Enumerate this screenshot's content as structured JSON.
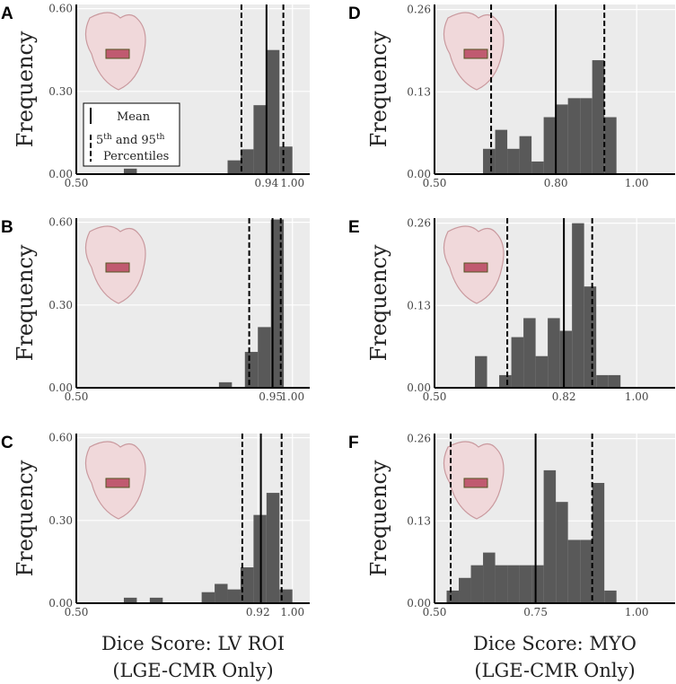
{
  "chart_data": [
    {
      "type": "histogram",
      "panel": "A",
      "ylabel": "Frequency",
      "color": "#595959",
      "grid": true,
      "bins": [
        0.61,
        0.64,
        0.67,
        0.7,
        0.73,
        0.76,
        0.79,
        0.82,
        0.85,
        0.88,
        0.91,
        0.94,
        0.97,
        1.0
      ],
      "values": [
        0.02,
        0,
        0,
        0,
        0,
        0,
        0,
        0,
        0.05,
        0.09,
        0.25,
        0.45,
        0.1
      ],
      "mean": 0.94,
      "percentiles": [
        0.882,
        0.979
      ],
      "xlim": [
        0.5,
        1.04
      ],
      "xticks": [
        {
          "value": 0.5,
          "label": "0.50"
        },
        0.94,
        {
          "value": 1,
          "label": "1.00"
        }
      ],
      "ylim": [
        0,
        0.615
      ],
      "yticks": [
        {
          "value": 0,
          "label": "0.00"
        },
        {
          "value": 0.3,
          "label": "0.30"
        },
        {
          "value": 0.6,
          "label": "0.60"
        }
      ],
      "legend": {
        "mean": "Mean",
        "percentiles": [
          "5",
          "th",
          " and 95",
          "th",
          "Percentiles"
        ]
      }
    },
    {
      "type": "histogram",
      "panel": "B",
      "ylabel": "Frequency",
      "color": "#595959",
      "grid": true,
      "bins": [
        0.83,
        0.86,
        0.89,
        0.92,
        0.95,
        0.98
      ],
      "values": [
        0.02,
        0,
        0.13,
        0.22,
        0.61
      ],
      "mean": 0.954,
      "percentiles": [
        0.9,
        0.973
      ],
      "xlim": [
        0.5,
        1.04
      ],
      "xticks": [
        {
          "value": 0.5,
          "label": "0.50"
        },
        0.95,
        {
          "value": 1,
          "label": "1.00"
        }
      ],
      "ylim": [
        0,
        0.615
      ],
      "yticks": [
        {
          "value": 0,
          "label": "0.00"
        },
        {
          "value": 0.3,
          "label": "0.30"
        },
        {
          "value": 0.6,
          "label": "0.60"
        }
      ]
    },
    {
      "type": "histogram",
      "panel": "C",
      "ylabel": "Frequency",
      "color": "#595959",
      "grid": true,
      "bins": [
        0.61,
        0.64,
        0.67,
        0.7,
        0.73,
        0.76,
        0.79,
        0.82,
        0.85,
        0.88,
        0.91,
        0.94,
        0.97,
        1.0
      ],
      "values": [
        0.02,
        0,
        0.02,
        0,
        0,
        0,
        0.04,
        0.07,
        0.05,
        0.13,
        0.32,
        0.4,
        0.05
      ],
      "mean": 0.927,
      "percentiles": [
        0.884,
        0.975
      ],
      "xlim": [
        0.5,
        1.04
      ],
      "xticks": [
        {
          "value": 0.5,
          "label": "0.50"
        },
        0.92,
        {
          "value": 1,
          "label": "1.00"
        }
      ],
      "ylim": [
        0,
        0.615
      ],
      "yticks": [
        {
          "value": 0,
          "label": "0.00"
        },
        {
          "value": 0.3,
          "label": "0.30"
        },
        {
          "value": 0.6,
          "label": "0.60"
        }
      ],
      "xlabel": [
        "Dice Score: LV ROI",
        "(LGE-CMR Only)"
      ]
    },
    {
      "type": "histogram",
      "panel": "D",
      "ylabel": "Frequency",
      "color": "#595959",
      "grid": true,
      "bins": [
        0.62,
        0.65,
        0.68,
        0.71,
        0.74,
        0.77,
        0.8,
        0.83,
        0.86,
        0.89,
        0.92,
        0.95
      ],
      "values": [
        0.04,
        0.07,
        0.04,
        0.06,
        0.02,
        0.09,
        0.11,
        0.12,
        0.12,
        0.18,
        0.09
      ],
      "mean": 0.8,
      "percentiles": [
        0.64,
        0.92
      ],
      "xlim": [
        0.5,
        1.095
      ],
      "xticks": [
        {
          "value": 0.5,
          "label": "0.50"
        },
        {
          "value": 0.8,
          "label": "0.80"
        },
        {
          "value": 1,
          "label": "1.00"
        }
      ],
      "ylim": [
        0,
        0.268
      ],
      "yticks": [
        {
          "value": 0,
          "label": "0.00"
        },
        0.13,
        0.26
      ]
    },
    {
      "type": "histogram",
      "panel": "E",
      "ylabel": "Frequency",
      "color": "#595959",
      "grid": true,
      "bins": [
        0.6,
        0.63,
        0.66,
        0.69,
        0.72,
        0.75,
        0.78,
        0.81,
        0.84,
        0.87,
        0.9,
        0.93,
        0.96
      ],
      "values": [
        0.05,
        0,
        0.02,
        0.08,
        0.11,
        0.05,
        0.11,
        0.09,
        0.26,
        0.16,
        0.02,
        0.02
      ],
      "mean": 0.82,
      "percentiles": [
        0.68,
        0.89
      ],
      "xlim": [
        0.5,
        1.095
      ],
      "xticks": [
        {
          "value": 0.5,
          "label": "0.50"
        },
        0.82,
        {
          "value": 1,
          "label": "1.00"
        }
      ],
      "ylim": [
        0,
        0.268
      ],
      "yticks": [
        {
          "value": 0,
          "label": "0.00"
        },
        0.13,
        0.26
      ]
    },
    {
      "type": "histogram",
      "panel": "F",
      "ylabel": "Frequency",
      "color": "#595959",
      "grid": true,
      "bins": [
        0.53,
        0.56,
        0.59,
        0.62,
        0.65,
        0.68,
        0.71,
        0.74,
        0.77,
        0.8,
        0.83,
        0.86,
        0.89,
        0.92,
        0.95
      ],
      "values": [
        0.02,
        0.04,
        0.06,
        0.08,
        0.06,
        0.06,
        0.06,
        0.06,
        0.21,
        0.16,
        0.1,
        0.1,
        0.19,
        0.02
      ],
      "mean": 0.75,
      "percentiles": [
        0.54,
        0.89
      ],
      "xlim": [
        0.5,
        1.095
      ],
      "xticks": [
        {
          "value": 0.5,
          "label": "0.50"
        },
        0.75,
        {
          "value": 1,
          "label": "1.00"
        }
      ],
      "ylim": [
        0,
        0.268
      ],
      "yticks": [
        {
          "value": 0,
          "label": "0.00"
        },
        0.13,
        0.26
      ],
      "xlabel": [
        "Dice Score: MYO",
        "(LGE-CMR Only)"
      ]
    }
  ]
}
